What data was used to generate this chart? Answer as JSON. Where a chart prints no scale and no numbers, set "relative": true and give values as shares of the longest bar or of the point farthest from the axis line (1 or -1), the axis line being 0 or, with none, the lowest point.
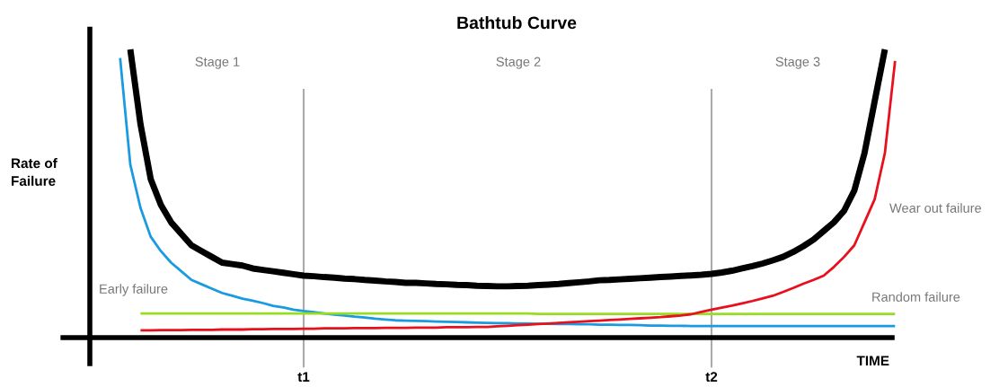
{
  "chart_data": {
    "type": "line",
    "title": "Bathtub Curve",
    "xlabel": "TIME",
    "ylabel": "Rate of Failure",
    "relative": true,
    "grid": "x",
    "categories": [
      null,
      null,
      null,
      null,
      null,
      null,
      null,
      null,
      null,
      null,
      null,
      null,
      null,
      null,
      null,
      null,
      null,
      null,
      "t1",
      null,
      null,
      null,
      null,
      null,
      null,
      null,
      null,
      null,
      null,
      null,
      null,
      null,
      null,
      null,
      null,
      null,
      null,
      null,
      null,
      null,
      null,
      null,
      null,
      null,
      null,
      null,
      null,
      null,
      null,
      null,
      null,
      null,
      null,
      null,
      null,
      null,
      null,
      null,
      "t2",
      null,
      null,
      null,
      null,
      null,
      null,
      null,
      null,
      null,
      null,
      null,
      null,
      null,
      null,
      null,
      null,
      null,
      null
    ],
    "series": [
      {
        "color": "#000000",
        "values": [
          null,
          1.0,
          0.74,
          0.55,
          0.46,
          0.4,
          0.36,
          0.32,
          0.3,
          0.28,
          0.26,
          0.255,
          0.25,
          0.24,
          0.235,
          0.23,
          0.225,
          0.22,
          0.215,
          0.213,
          0.21,
          0.208,
          0.205,
          0.203,
          0.2,
          0.198,
          0.195,
          0.193,
          0.19,
          0.19,
          0.188,
          0.186,
          0.185,
          0.183,
          0.182,
          0.18,
          0.179,
          0.178,
          0.178,
          0.179,
          0.18,
          0.182,
          0.184,
          0.186,
          0.189,
          0.192,
          0.195,
          0.199,
          0.2,
          0.202,
          0.204,
          0.206,
          0.208,
          0.21,
          0.212,
          0.214,
          0.216,
          0.218,
          0.221,
          0.226,
          0.232,
          0.24,
          0.248,
          0.257,
          0.268,
          0.28,
          0.297,
          0.317,
          0.34,
          0.37,
          0.4,
          0.44,
          0.51,
          0.64,
          0.82,
          1.0,
          null
        ]
      },
      {
        "name": "Early failure",
        "color": "#1a9ae0",
        "values": [
          0.97,
          0.6,
          0.45,
          0.35,
          0.3,
          0.26,
          0.23,
          0.2,
          0.185,
          0.17,
          0.155,
          0.145,
          0.135,
          0.128,
          0.12,
          0.11,
          0.105,
          0.097,
          0.092,
          0.088,
          0.084,
          0.08,
          0.077,
          0.073,
          0.07,
          0.066,
          0.063,
          0.06,
          0.059,
          0.058,
          0.057,
          0.056,
          0.055,
          0.054,
          0.053,
          0.052,
          0.051,
          0.05,
          0.05,
          0.049,
          0.049,
          0.048,
          0.048,
          0.047,
          0.047,
          0.046,
          0.046,
          0.045,
          0.045,
          0.044,
          0.044,
          0.043,
          0.042,
          0.042,
          0.041,
          0.041,
          0.04,
          0.04,
          0.04,
          0.04,
          0.04,
          0.04,
          0.04,
          0.04,
          0.04,
          0.04,
          0.04,
          0.04,
          0.04,
          0.04,
          0.04,
          0.04,
          0.04,
          0.04,
          0.04,
          0.04,
          0.04
        ]
      },
      {
        "name": "Random failure",
        "color": "#99dd22",
        "values": [
          null,
          null,
          0.084,
          0.084,
          0.084,
          0.084,
          0.084,
          0.084,
          0.084,
          0.084,
          0.084,
          0.084,
          0.084,
          0.084,
          0.084,
          0.084,
          0.084,
          0.084,
          0.084,
          0.084,
          0.084,
          0.084,
          0.084,
          0.084,
          0.084,
          0.084,
          0.084,
          0.084,
          0.084,
          0.084,
          0.084,
          0.084,
          0.084,
          0.084,
          0.084,
          0.084,
          0.084,
          0.084,
          0.084,
          0.084,
          0.084,
          0.082,
          0.082,
          0.082,
          0.082,
          0.082,
          0.082,
          0.082,
          0.082,
          0.082,
          0.082,
          0.082,
          0.082,
          0.082,
          0.082,
          0.082,
          0.082,
          0.082,
          0.082,
          0.082,
          0.082,
          0.082,
          0.082,
          0.082,
          0.082,
          0.082,
          0.082,
          0.082,
          0.082,
          0.082,
          0.082,
          0.082,
          0.082,
          0.082,
          0.082,
          0.082,
          0.082
        ]
      },
      {
        "name": "Wear out failure",
        "color": "#e8101c",
        "values": [
          null,
          null,
          0.025,
          0.025,
          0.026,
          0.026,
          0.026,
          0.027,
          0.027,
          0.027,
          0.028,
          0.028,
          0.028,
          0.029,
          0.029,
          0.03,
          0.03,
          0.03,
          0.031,
          0.031,
          0.032,
          0.032,
          0.032,
          0.033,
          0.033,
          0.033,
          0.034,
          0.034,
          0.034,
          0.035,
          0.035,
          0.035,
          0.036,
          0.036,
          0.036,
          0.037,
          0.037,
          0.039,
          0.041,
          0.043,
          0.045,
          0.047,
          0.049,
          0.051,
          0.053,
          0.055,
          0.057,
          0.059,
          0.061,
          0.063,
          0.065,
          0.067,
          0.069,
          0.071,
          0.074,
          0.077,
          0.081,
          0.089,
          0.097,
          0.104,
          0.111,
          0.119,
          0.127,
          0.136,
          0.145,
          0.158,
          0.172,
          0.187,
          0.2,
          0.215,
          0.245,
          0.28,
          0.32,
          0.4,
          0.48,
          0.64,
          0.96
        ]
      }
    ],
    "annotations": [
      "Stage 1",
      "Stage 2",
      "Stage 3"
    ]
  }
}
